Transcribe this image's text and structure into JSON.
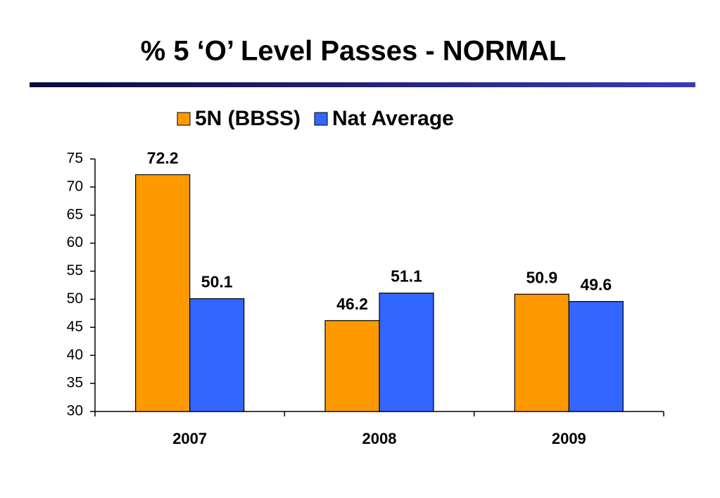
{
  "chart_data": {
    "type": "bar",
    "title": "% 5 ‘O’ Level Passes - NORMAL",
    "categories": [
      "2007",
      "2008",
      "2009"
    ],
    "series": [
      {
        "name": "5N (BBSS)",
        "color": "#ff9900",
        "values": [
          72.2,
          46.2,
          50.9
        ]
      },
      {
        "name": "Nat Average",
        "color": "#3366ff",
        "values": [
          50.1,
          51.1,
          49.6
        ]
      }
    ],
    "ylim": [
      30,
      75
    ],
    "yticks": [
      30,
      35,
      40,
      45,
      50,
      55,
      60,
      65,
      70,
      75
    ],
    "grid": false,
    "legend": "top"
  }
}
